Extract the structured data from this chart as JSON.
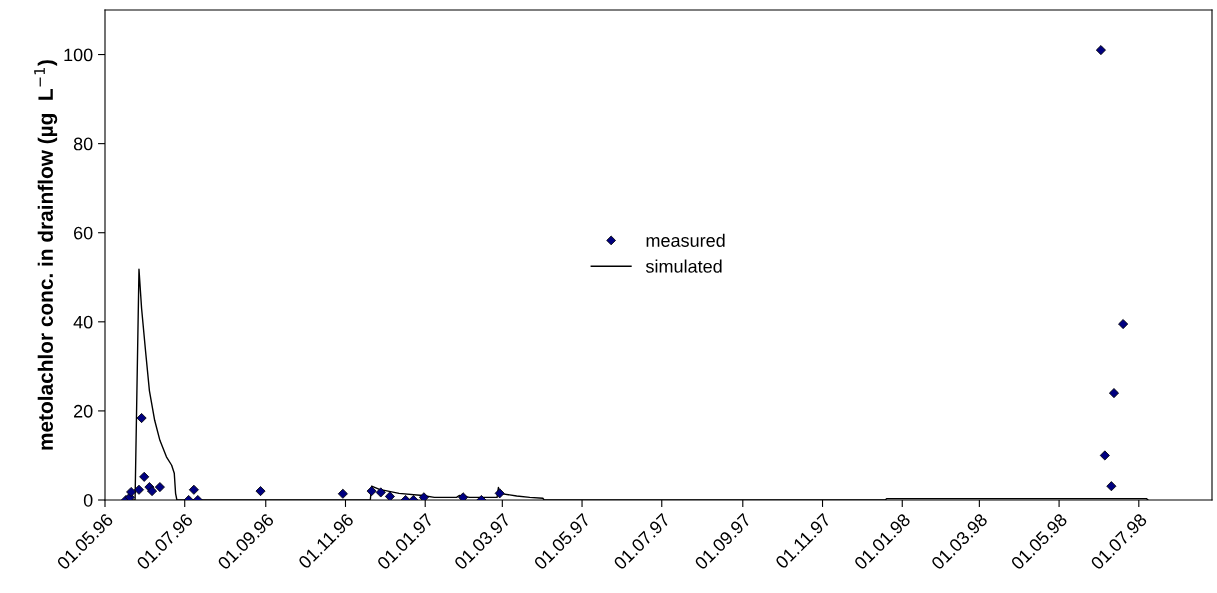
{
  "chart_data": {
    "type": "scatter",
    "ylabel": "metolachlor conc. in drainflow (µg  L$^{−1}$)",
    "xlim": [
      "1996-05-01",
      "1998-08-26"
    ],
    "ylim": [
      0,
      110
    ],
    "yticks": [
      0,
      20,
      40,
      60,
      80,
      100
    ],
    "xticks": [
      {
        "value": "1996-05-01",
        "label": "01.05.96"
      },
      {
        "value": "1996-07-01",
        "label": "01.07.96"
      },
      {
        "value": "1996-09-01",
        "label": "01.09.96"
      },
      {
        "value": "1996-11-01",
        "label": "01.11.96"
      },
      {
        "value": "1997-01-01",
        "label": "01.01.97"
      },
      {
        "value": "1997-03-01",
        "label": "01.03.97"
      },
      {
        "value": "1997-05-01",
        "label": "01.05.97"
      },
      {
        "value": "1997-07-01",
        "label": "01.07.97"
      },
      {
        "value": "1997-09-01",
        "label": "01.09.97"
      },
      {
        "value": "1997-11-01",
        "label": "01.11.97"
      },
      {
        "value": "1998-01-01",
        "label": "01.01.98"
      },
      {
        "value": "1998-03-01",
        "label": "01.03.98"
      },
      {
        "value": "1998-05-01",
        "label": "01.05.98"
      },
      {
        "value": "1998-07-01",
        "label": "01.07.98"
      }
    ],
    "grid": false,
    "legend": "center",
    "series": [
      {
        "name": "measured",
        "marker": "diamond",
        "color": "#000080",
        "x": [
          "1996-05-17",
          "1996-05-20",
          "1996-05-21",
          "1996-05-27",
          "1996-05-29",
          "1996-05-31",
          "1996-06-04",
          "1996-06-06",
          "1996-06-12",
          "1996-07-04",
          "1996-07-08",
          "1996-07-11",
          "1996-08-28",
          "1996-10-30",
          "1996-11-21",
          "1996-11-28",
          "1996-12-05",
          "1996-12-17",
          "1996-12-23",
          "1996-12-31",
          "1997-01-30",
          "1997-02-13",
          "1997-02-27",
          "1998-06-02",
          "1998-06-05",
          "1998-06-10",
          "1998-06-12",
          "1998-06-19"
        ],
        "values": [
          0,
          0.6,
          1.8,
          2.3,
          18.4,
          5.2,
          2.9,
          2.0,
          2.9,
          0,
          2.3,
          0,
          2.0,
          1.4,
          2.0,
          1.7,
          0.8,
          0,
          0,
          0.6,
          0.6,
          0,
          1.5,
          101,
          10.0,
          3.1,
          24.0,
          39.5
        ]
      },
      {
        "name": "simulated",
        "type": "line",
        "marker": "none",
        "line_style": "solid",
        "color": "#000000",
        "x": [
          "1996-05-17",
          "1996-05-24",
          "1996-05-27",
          "1996-05-29",
          "1996-06-01",
          "1996-06-04",
          "1996-06-08",
          "1996-06-12",
          "1996-06-17",
          "1996-06-21",
          "1996-06-23",
          "1996-06-24",
          "1996-06-25",
          "1996-11-20",
          "1996-11-21",
          "1996-11-27",
          "1996-12-12",
          "1996-12-30",
          "1997-01-08",
          "1997-01-25",
          "1997-01-27",
          "1997-02-04",
          "1997-02-25",
          "1997-02-26",
          "1997-02-27",
          "1997-03-12",
          "1997-03-22",
          "1997-04-01",
          "1997-04-02",
          "1997-12-19",
          "1997-12-20",
          "1998-07-07",
          "1998-07-08"
        ],
        "values": [
          0,
          0,
          51.8,
          43,
          33.5,
          24.5,
          17.9,
          13.4,
          9.7,
          7.8,
          6,
          1.5,
          0,
          0,
          3.1,
          2.4,
          1.5,
          1.0,
          0.6,
          0.6,
          1.0,
          0.6,
          0.6,
          2.8,
          1.5,
          0.9,
          0.6,
          0.4,
          0,
          0,
          0.3,
          0.3,
          0
        ]
      }
    ]
  }
}
